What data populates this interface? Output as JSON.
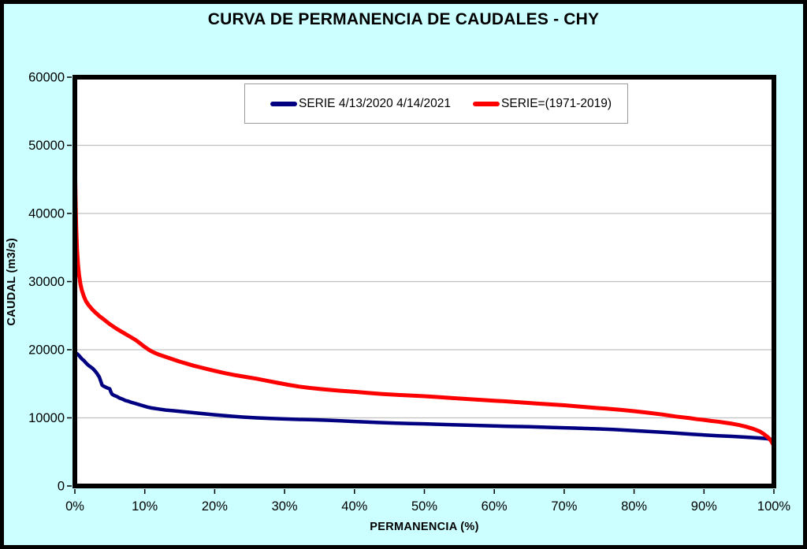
{
  "title": "CURVA DE PERMANENCIA DE CAUDALES - CHY",
  "colors": {
    "background": "#CCFFFF",
    "frame_border": "#000000",
    "plot_background": "#FFFFFF",
    "plot_border": "#000000",
    "gridline": "#C0C0C0",
    "series_blue": "#000080",
    "series_red": "#FF0000",
    "legend_border": "#9A9A9A"
  },
  "legend": {
    "items": [
      {
        "label": "SERIE 4/13/2020 4/14/2021",
        "color": "#000080"
      },
      {
        "label": "SERIE=(1971-2019)",
        "color": "#FF0000"
      }
    ]
  },
  "chart_data": {
    "type": "line",
    "title": "CURVA DE PERMANENCIA DE CAUDALES - CHY",
    "xlabel": "PERMANENCIA (%)",
    "ylabel": "CAUDAL (m3/s)",
    "xlim": [
      0,
      100
    ],
    "ylim": [
      0,
      60000
    ],
    "x_ticks": [
      "0%",
      "10%",
      "20%",
      "30%",
      "40%",
      "50%",
      "60%",
      "70%",
      "80%",
      "90%",
      "100%"
    ],
    "y_ticks": [
      "0",
      "10000",
      "20000",
      "30000",
      "40000",
      "50000",
      "60000"
    ],
    "grid": "horizontal-only",
    "legend_position": "top-center-inside-frame",
    "series": [
      {
        "name": "SERIE 4/13/2020 4/14/2021",
        "color": "#000080",
        "width": 4.5,
        "points": [
          [
            0,
            19500
          ],
          [
            0.3,
            19420
          ],
          [
            0.6,
            19150
          ],
          [
            1,
            18650
          ],
          [
            1.3,
            18400
          ],
          [
            1.6,
            18050
          ],
          [
            2,
            17650
          ],
          [
            2.3,
            17450
          ],
          [
            2.6,
            17200
          ],
          [
            3,
            16750
          ],
          [
            3.2,
            16450
          ],
          [
            3.5,
            16000
          ],
          [
            3.7,
            15400
          ],
          [
            3.9,
            14800
          ],
          [
            4.2,
            14600
          ],
          [
            4.6,
            14400
          ],
          [
            5,
            14250
          ],
          [
            5.15,
            13800
          ],
          [
            5.3,
            13500
          ],
          [
            5.6,
            13300
          ],
          [
            6,
            13150
          ],
          [
            6.4,
            12900
          ],
          [
            6.8,
            12750
          ],
          [
            7.2,
            12550
          ],
          [
            7.6,
            12450
          ],
          [
            8,
            12300
          ],
          [
            8.5,
            12150
          ],
          [
            9,
            12000
          ],
          [
            9.5,
            11850
          ],
          [
            10,
            11700
          ],
          [
            10.5,
            11550
          ],
          [
            11,
            11450
          ],
          [
            12,
            11300
          ],
          [
            13,
            11150
          ],
          [
            14,
            11050
          ],
          [
            15,
            10950
          ],
          [
            16,
            10850
          ],
          [
            17,
            10750
          ],
          [
            18,
            10650
          ],
          [
            19,
            10550
          ],
          [
            20,
            10450
          ],
          [
            22,
            10280
          ],
          [
            24,
            10120
          ],
          [
            26,
            10000
          ],
          [
            28,
            9920
          ],
          [
            30,
            9840
          ],
          [
            32,
            9770
          ],
          [
            34,
            9720
          ],
          [
            36,
            9650
          ],
          [
            38,
            9560
          ],
          [
            40,
            9470
          ],
          [
            42,
            9380
          ],
          [
            44,
            9300
          ],
          [
            46,
            9230
          ],
          [
            48,
            9170
          ],
          [
            50,
            9120
          ],
          [
            53,
            9020
          ],
          [
            56,
            8930
          ],
          [
            59,
            8840
          ],
          [
            62,
            8760
          ],
          [
            65,
            8690
          ],
          [
            68,
            8600
          ],
          [
            71,
            8510
          ],
          [
            74,
            8420
          ],
          [
            77,
            8300
          ],
          [
            80,
            8120
          ],
          [
            82,
            8000
          ],
          [
            84,
            7900
          ],
          [
            86,
            7760
          ],
          [
            88,
            7620
          ],
          [
            90,
            7490
          ],
          [
            92,
            7380
          ],
          [
            94,
            7280
          ],
          [
            96,
            7170
          ],
          [
            98,
            7040
          ],
          [
            99,
            6950
          ],
          [
            99.6,
            6850
          ],
          [
            100,
            6650
          ]
        ]
      },
      {
        "name": "SERIE=(1971-2019)",
        "color": "#FF0000",
        "width": 5,
        "points": [
          [
            0,
            51000
          ],
          [
            0.06,
            45000
          ],
          [
            0.12,
            41000
          ],
          [
            0.2,
            37500
          ],
          [
            0.3,
            34800
          ],
          [
            0.45,
            32500
          ],
          [
            0.6,
            31000
          ],
          [
            0.8,
            29600
          ],
          [
            1,
            28700
          ],
          [
            1.3,
            27800
          ],
          [
            1.6,
            27100
          ],
          [
            2,
            26500
          ],
          [
            2.5,
            25900
          ],
          [
            3,
            25400
          ],
          [
            3.5,
            24950
          ],
          [
            4,
            24550
          ],
          [
            4.5,
            24150
          ],
          [
            5,
            23750
          ],
          [
            5.5,
            23400
          ],
          [
            6,
            23050
          ],
          [
            6.5,
            22750
          ],
          [
            7,
            22450
          ],
          [
            7.5,
            22150
          ],
          [
            8,
            21850
          ],
          [
            8.5,
            21550
          ],
          [
            9,
            21200
          ],
          [
            9.5,
            20800
          ],
          [
            10,
            20400
          ],
          [
            10.5,
            20050
          ],
          [
            11,
            19750
          ],
          [
            11.5,
            19500
          ],
          [
            12,
            19300
          ],
          [
            13,
            18950
          ],
          [
            14,
            18600
          ],
          [
            15,
            18250
          ],
          [
            16,
            17950
          ],
          [
            17,
            17650
          ],
          [
            18,
            17400
          ],
          [
            19,
            17150
          ],
          [
            20,
            16900
          ],
          [
            21.5,
            16550
          ],
          [
            23,
            16250
          ],
          [
            24.5,
            16000
          ],
          [
            26,
            15750
          ],
          [
            27.5,
            15450
          ],
          [
            29,
            15150
          ],
          [
            30.5,
            14850
          ],
          [
            32,
            14600
          ],
          [
            33.5,
            14400
          ],
          [
            35,
            14250
          ],
          [
            36.5,
            14100
          ],
          [
            38,
            13980
          ],
          [
            40,
            13830
          ],
          [
            42,
            13650
          ],
          [
            44,
            13500
          ],
          [
            46,
            13380
          ],
          [
            48,
            13280
          ],
          [
            50,
            13180
          ],
          [
            52,
            13050
          ],
          [
            54,
            12900
          ],
          [
            56,
            12780
          ],
          [
            58,
            12650
          ],
          [
            60,
            12520
          ],
          [
            62,
            12400
          ],
          [
            64,
            12250
          ],
          [
            66,
            12100
          ],
          [
            68,
            11980
          ],
          [
            70,
            11850
          ],
          [
            72,
            11680
          ],
          [
            74,
            11500
          ],
          [
            76,
            11350
          ],
          [
            78,
            11180
          ],
          [
            80,
            10980
          ],
          [
            82,
            10750
          ],
          [
            84,
            10500
          ],
          [
            86,
            10200
          ],
          [
            88,
            9950
          ],
          [
            89,
            9800
          ],
          [
            90,
            9700
          ],
          [
            91,
            9550
          ],
          [
            92,
            9450
          ],
          [
            93,
            9300
          ],
          [
            94,
            9150
          ],
          [
            95,
            8950
          ],
          [
            96,
            8700
          ],
          [
            97,
            8400
          ],
          [
            98,
            8000
          ],
          [
            98.6,
            7600
          ],
          [
            99.2,
            7100
          ],
          [
            99.6,
            6600
          ],
          [
            100,
            5900
          ]
        ]
      }
    ]
  }
}
